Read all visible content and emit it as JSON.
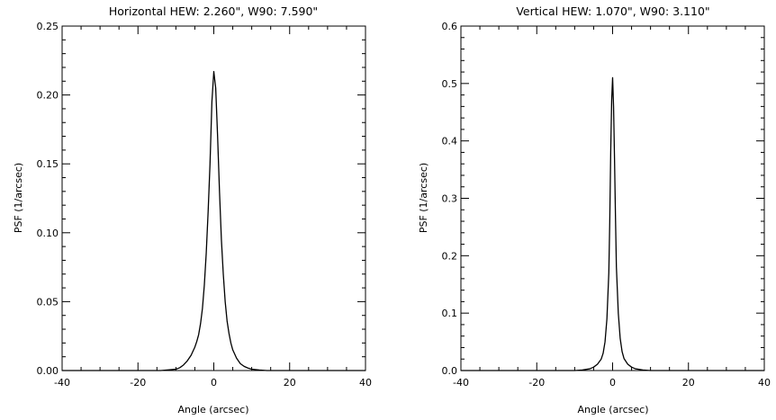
{
  "chart_data": [
    {
      "type": "line",
      "title": "Horizontal HEW: 2.260\", W90: 7.590\"",
      "xlabel": "Angle (arcsec)",
      "ylabel": "PSF (1/arcsec)",
      "xlim": [
        -40,
        40
      ],
      "ylim": [
        0,
        0.25
      ],
      "xticks": [
        -40,
        -20,
        0,
        20,
        40
      ],
      "xtick_labels": [
        "-40",
        "-20",
        "0",
        "20",
        "40"
      ],
      "yticks": [
        0,
        0.05,
        0.1,
        0.15,
        0.2,
        0.25
      ],
      "ytick_labels": [
        "0.00",
        "0.05",
        "0.10",
        "0.15",
        "0.20",
        "0.25"
      ],
      "x_minor_step": 5,
      "y_minor_step": 0.01,
      "grid": false,
      "series": [
        {
          "x": [
            -40,
            -14,
            -12,
            -10,
            -9,
            -8,
            -7,
            -6,
            -5,
            -4.5,
            -4,
            -3.5,
            -3,
            -2.5,
            -2,
            -1.5,
            -1,
            -0.5,
            0,
            0.5,
            1,
            1.5,
            2,
            2.5,
            3,
            3.5,
            4,
            4.5,
            5,
            6,
            7,
            8,
            9,
            10,
            12,
            14,
            40
          ],
          "y": [
            0,
            0,
            0.0005,
            0.001,
            0.002,
            0.004,
            0.007,
            0.011,
            0.017,
            0.021,
            0.026,
            0.034,
            0.045,
            0.062,
            0.085,
            0.115,
            0.15,
            0.195,
            0.217,
            0.205,
            0.17,
            0.13,
            0.095,
            0.07,
            0.05,
            0.036,
            0.027,
            0.02,
            0.015,
            0.009,
            0.005,
            0.003,
            0.0018,
            0.001,
            0.0004,
            0,
            0
          ]
        }
      ]
    },
    {
      "type": "line",
      "title": "Vertical HEW: 1.070\", W90: 3.110\"",
      "xlabel": "Angle (arcsec)",
      "ylabel": "PSF (1/arcsec)",
      "xlim": [
        -40,
        40
      ],
      "ylim": [
        0,
        0.6
      ],
      "xticks": [
        -40,
        -20,
        0,
        20,
        40
      ],
      "xtick_labels": [
        "-40",
        "-20",
        "0",
        "20",
        "40"
      ],
      "yticks": [
        0,
        0.1,
        0.2,
        0.3,
        0.4,
        0.5,
        0.6
      ],
      "ytick_labels": [
        "0.0",
        "0.1",
        "0.2",
        "0.3",
        "0.4",
        "0.5",
        "0.6"
      ],
      "x_minor_step": 5,
      "y_minor_step": 0.02,
      "grid": false,
      "series": [
        {
          "x": [
            -40,
            -10,
            -8,
            -6,
            -5,
            -4,
            -3,
            -2.5,
            -2,
            -1.5,
            -1,
            -0.75,
            -0.5,
            -0.25,
            0,
            0.25,
            0.5,
            0.75,
            1,
            1.5,
            2,
            2.5,
            3,
            4,
            5,
            6,
            8,
            10,
            40
          ],
          "y": [
            0,
            0,
            0.001,
            0.003,
            0.006,
            0.011,
            0.02,
            0.03,
            0.05,
            0.09,
            0.17,
            0.26,
            0.38,
            0.47,
            0.51,
            0.46,
            0.37,
            0.27,
            0.18,
            0.1,
            0.056,
            0.033,
            0.021,
            0.011,
            0.006,
            0.003,
            0.001,
            0,
            0
          ]
        }
      ]
    }
  ]
}
